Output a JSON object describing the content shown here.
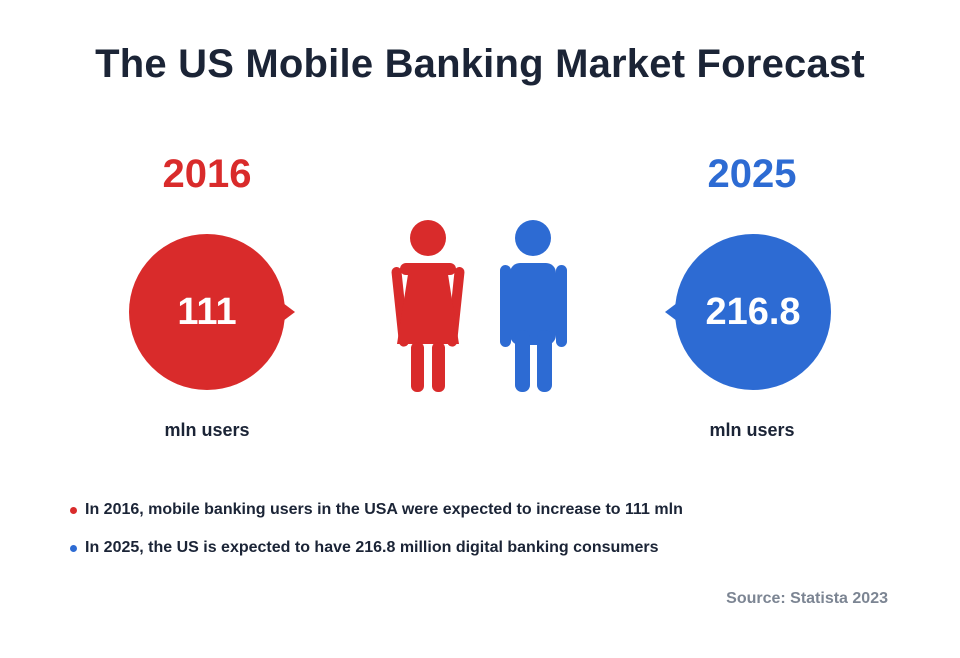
{
  "title": "The US Mobile Banking Market Forecast",
  "colors": {
    "red": "#d92b2b",
    "blue": "#2d6bd3",
    "text": "#1b2436",
    "muted": "#7c8593"
  },
  "chart_data": {
    "type": "table",
    "title": "The US Mobile Banking Market Forecast",
    "categories": [
      "2016",
      "2025"
    ],
    "values": [
      111,
      216.8
    ],
    "value_labels": [
      "111",
      "216.8"
    ],
    "unit": "mln users"
  },
  "left": {
    "year": "2016",
    "value": "111",
    "caption": "mln users",
    "icon": "female-person-icon"
  },
  "right": {
    "year": "2025",
    "value": "216.8",
    "caption": "mln users",
    "icon": "male-person-icon"
  },
  "notes": [
    {
      "text": "In 2016, mobile banking users in the USA were expected to increase to 111 mln",
      "color": "#d92b2b"
    },
    {
      "text": "In 2025, the US is expected to have 216.8 million digital banking consumers",
      "color": "#2d6bd3"
    }
  ],
  "source": "Source: Statista 2023"
}
